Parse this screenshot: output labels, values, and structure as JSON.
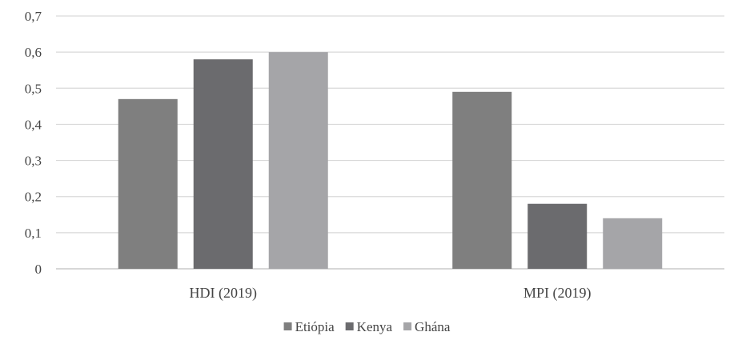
{
  "chart_data": {
    "type": "bar",
    "categories": [
      "HDI (2019)",
      "MPI (2019)"
    ],
    "series": [
      {
        "name": "Etiópia",
        "values": [
          0.47,
          0.49
        ],
        "color": "#7f7f7f"
      },
      {
        "name": "Kenya",
        "values": [
          0.58,
          0.18
        ],
        "color": "#6b6b6e"
      },
      {
        "name": "Ghána",
        "values": [
          0.6,
          0.14
        ],
        "color": "#a5a5a8"
      }
    ],
    "ylim": [
      0,
      0.7
    ],
    "yticks": [
      "0",
      "0,1",
      "0,2",
      "0,3",
      "0,4",
      "0,5",
      "0,6",
      "0,7"
    ],
    "title": "",
    "xlabel": "",
    "ylabel": "",
    "grid": true,
    "legend_position": "bottom"
  }
}
